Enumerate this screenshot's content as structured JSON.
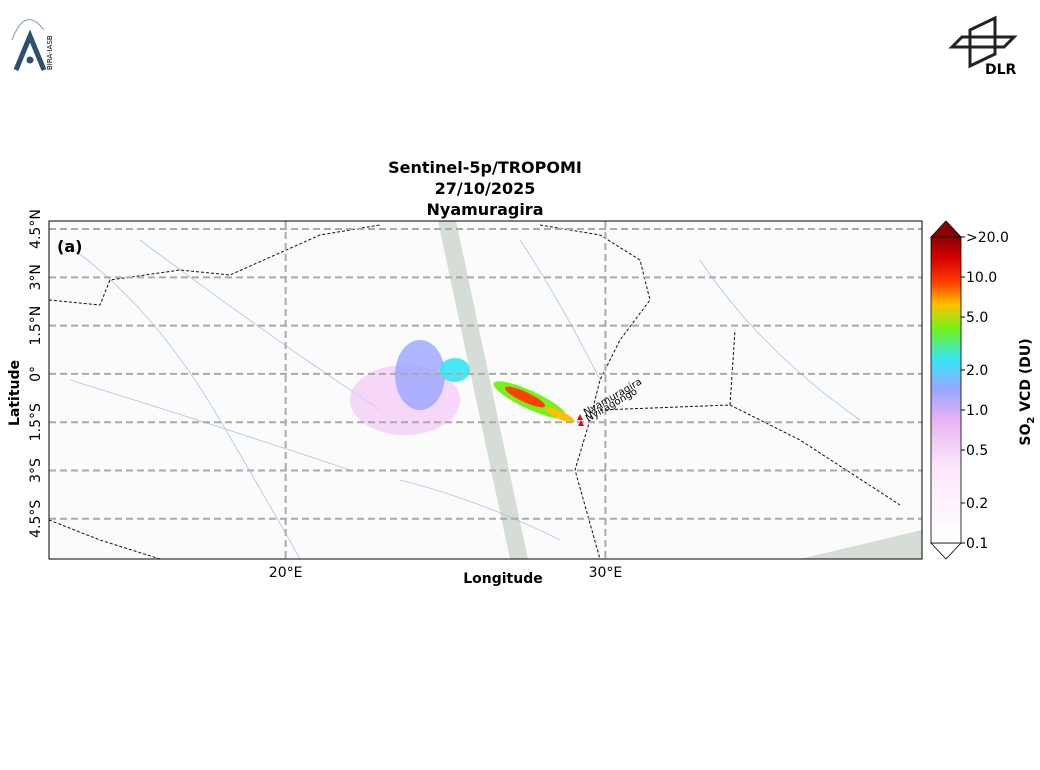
{
  "header": {
    "left_logo": "BIRA-IASB",
    "right_logo": "DLR"
  },
  "map": {
    "title": [
      "Sentinel-5p/TROPOMI",
      "27/10/2025",
      "Nyamuragira"
    ],
    "panel_label": "(a)",
    "xlabel": "Longitude",
    "ylabel": "Latitude",
    "xlim": [
      12.6,
      39.9
    ],
    "ylim": [
      -5.75,
      4.75
    ],
    "xticks": [
      {
        "value": 20,
        "label": "20°E"
      },
      {
        "value": 30,
        "label": "30°E"
      }
    ],
    "yticks": [
      {
        "value": 4.5,
        "label": "4.5°N"
      },
      {
        "value": 3,
        "label": "3°N"
      },
      {
        "value": 1.5,
        "label": "1.5°N"
      },
      {
        "value": 0,
        "label": "0°"
      },
      {
        "value": -1.5,
        "label": "1.5°S"
      },
      {
        "value": -3,
        "label": "3°S"
      },
      {
        "value": -4.5,
        "label": "4.5°S"
      }
    ],
    "grid": true,
    "volcanoes": [
      "Nyamuragira",
      "Nyiragongo"
    ]
  },
  "colorbar": {
    "label": {
      "main": "SO",
      "sub": "2",
      "rest": " VCD (DU)"
    },
    "scale": "log",
    "lim": [
      0.1,
      20
    ],
    "ticks": [
      {
        "value": 0.1,
        "label": "0.1"
      },
      {
        "value": 0.2,
        "label": "0.2"
      },
      {
        "value": 0.5,
        "label": "0.5"
      },
      {
        "value": 1,
        "label": "1.0"
      },
      {
        "value": 2,
        "label": "2.0"
      },
      {
        "value": 5,
        "label": "5.0"
      },
      {
        "value": 10,
        "label": "10.0"
      },
      {
        "value": 20,
        "label": ">20.0"
      }
    ]
  }
}
